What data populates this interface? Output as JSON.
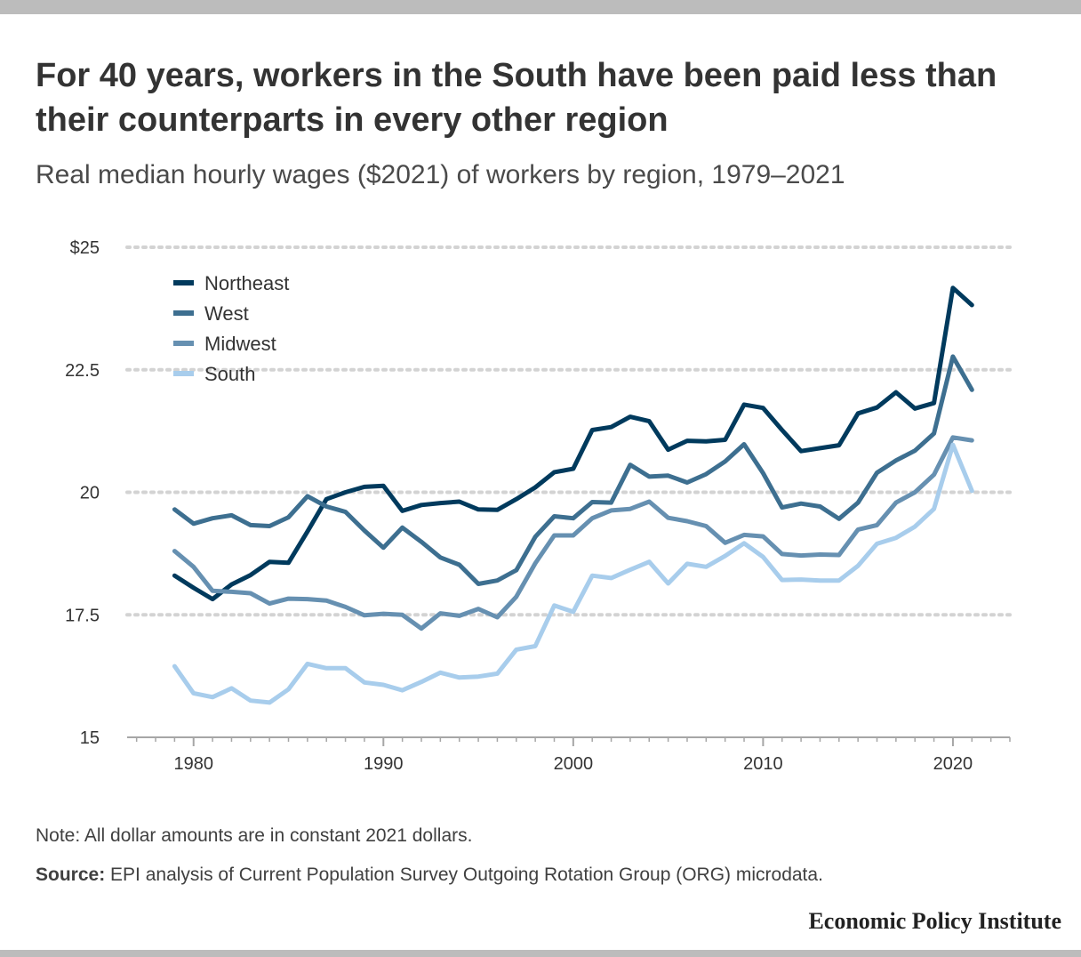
{
  "header": {
    "title": "For 40 years, workers in the South have been paid less than their counterparts in every other region",
    "subtitle": "Real median hourly wages ($2021) of workers by region, 1979–2021"
  },
  "footer": {
    "note": "Note: All dollar amounts are in constant 2021 dollars.",
    "source_label": "Source:",
    "source_text": " EPI analysis of Current Population Survey Outgoing Rotation Group (ORG) microdata.",
    "brand": "Economic Policy Institute"
  },
  "chart_data": {
    "type": "line",
    "title": "For 40 years, workers in the South have been paid less than their counterparts in every other region",
    "subtitle": "Real median hourly wages ($2021) of workers by region, 1979–2021",
    "xlabel": "",
    "ylabel": "",
    "xlim": [
      1976.5,
      2023
    ],
    "ylim": [
      15,
      25
    ],
    "x_ticks": [
      1980,
      1990,
      2000,
      2010,
      2020
    ],
    "x_tick_labels": [
      "1980",
      "1990",
      "2000",
      "2010",
      "2020"
    ],
    "y_ticks": [
      15,
      17.5,
      20,
      22.5,
      25
    ],
    "y_tick_labels": [
      "15",
      "17.5",
      "20",
      "22.5",
      "$25"
    ],
    "grid": "horizontal dotted",
    "legend": "top-left",
    "x": [
      1979,
      1980,
      1981,
      1982,
      1983,
      1984,
      1985,
      1986,
      1987,
      1988,
      1989,
      1990,
      1991,
      1992,
      1993,
      1994,
      1995,
      1996,
      1997,
      1998,
      1999,
      2000,
      2001,
      2002,
      2003,
      2004,
      2005,
      2006,
      2007,
      2008,
      2009,
      2010,
      2011,
      2012,
      2013,
      2014,
      2015,
      2016,
      2017,
      2018,
      2019,
      2020,
      2021
    ],
    "series": [
      {
        "name": "Northeast",
        "color": "#003a5d",
        "values": [
          18.3,
          18.05,
          17.82,
          18.12,
          18.31,
          18.58,
          18.56,
          19.2,
          19.86,
          20.0,
          20.11,
          20.13,
          19.62,
          19.74,
          19.78,
          19.81,
          19.65,
          19.64,
          19.86,
          20.1,
          20.41,
          20.48,
          21.27,
          21.33,
          21.54,
          21.45,
          20.87,
          21.05,
          21.04,
          21.07,
          21.79,
          21.72,
          21.27,
          20.84,
          20.9,
          20.96,
          21.61,
          21.73,
          22.04,
          21.71,
          21.82,
          24.17,
          23.82
        ]
      },
      {
        "name": "West",
        "color": "#3d6f90",
        "values": [
          19.65,
          19.36,
          19.47,
          19.53,
          19.33,
          19.31,
          19.49,
          19.92,
          19.71,
          19.6,
          19.22,
          18.87,
          19.28,
          18.99,
          18.67,
          18.52,
          18.13,
          18.2,
          18.41,
          19.09,
          19.51,
          19.47,
          19.8,
          19.79,
          20.56,
          20.32,
          20.34,
          20.2,
          20.37,
          20.63,
          20.98,
          20.39,
          19.69,
          19.77,
          19.71,
          19.46,
          19.79,
          20.4,
          20.65,
          20.85,
          21.2,
          22.77,
          22.09
        ]
      },
      {
        "name": "Midwest",
        "color": "#6690b1",
        "values": [
          18.8,
          18.48,
          17.99,
          17.97,
          17.94,
          17.73,
          17.83,
          17.82,
          17.79,
          17.66,
          17.49,
          17.52,
          17.5,
          17.22,
          17.53,
          17.48,
          17.62,
          17.45,
          17.87,
          18.55,
          19.12,
          19.12,
          19.47,
          19.63,
          19.66,
          19.81,
          19.48,
          19.41,
          19.31,
          18.97,
          19.13,
          19.1,
          18.74,
          18.71,
          18.73,
          18.72,
          19.24,
          19.33,
          19.79,
          20.0,
          20.36,
          21.12,
          21.06
        ]
      },
      {
        "name": "South",
        "color": "#a8cdec",
        "values": [
          16.45,
          15.9,
          15.82,
          16.0,
          15.75,
          15.71,
          15.98,
          16.5,
          16.41,
          16.41,
          16.12,
          16.07,
          15.96,
          16.13,
          16.32,
          16.22,
          16.24,
          16.3,
          16.79,
          16.86,
          17.69,
          17.56,
          18.3,
          18.25,
          18.42,
          18.58,
          18.14,
          18.54,
          18.48,
          18.7,
          18.96,
          18.68,
          18.21,
          18.22,
          18.2,
          18.2,
          18.5,
          18.95,
          19.07,
          19.3,
          19.66,
          20.97,
          20.03
        ]
      }
    ]
  }
}
